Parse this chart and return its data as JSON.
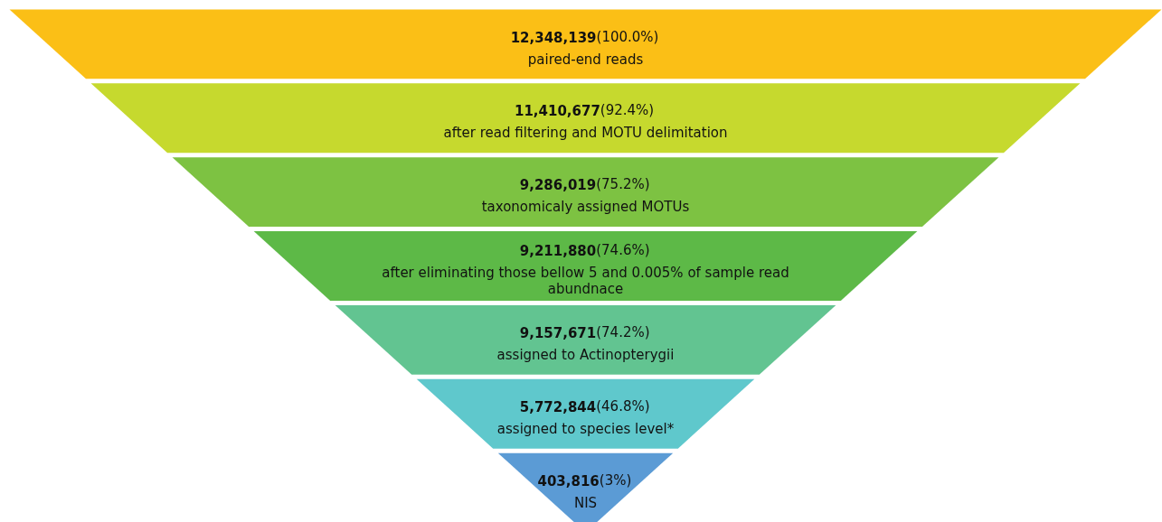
{
  "chart_data": {
    "type": "other",
    "categories": [
      "paired-end reads",
      "after read filtering and MOTU delimitation",
      "taxonomicaly assigned MOTUs",
      "after eliminating those bellow 5 and 0.005% of sample read abundnace",
      "assigned to Actinopterygii",
      "assigned to species level*",
      "NIS"
    ],
    "values": [
      12348139,
      11410677,
      9286019,
      9211880,
      9157671,
      5772844,
      403816
    ],
    "value_labels": [
      "12,348,139(100.0%)",
      "11,410,677(92.4%)",
      "9,286,019(75.2%)",
      "9,211,880(74.6%)",
      "9,157,671(74.2%)",
      "5,772,844(46.8%)",
      "403,816(3%)"
    ],
    "colors": [
      "#fbbf16",
      "#c6d92e",
      "#7dc242",
      "#5db947",
      "#62c491",
      "#5fc8cc",
      "#5b9bd5"
    ]
  }
}
